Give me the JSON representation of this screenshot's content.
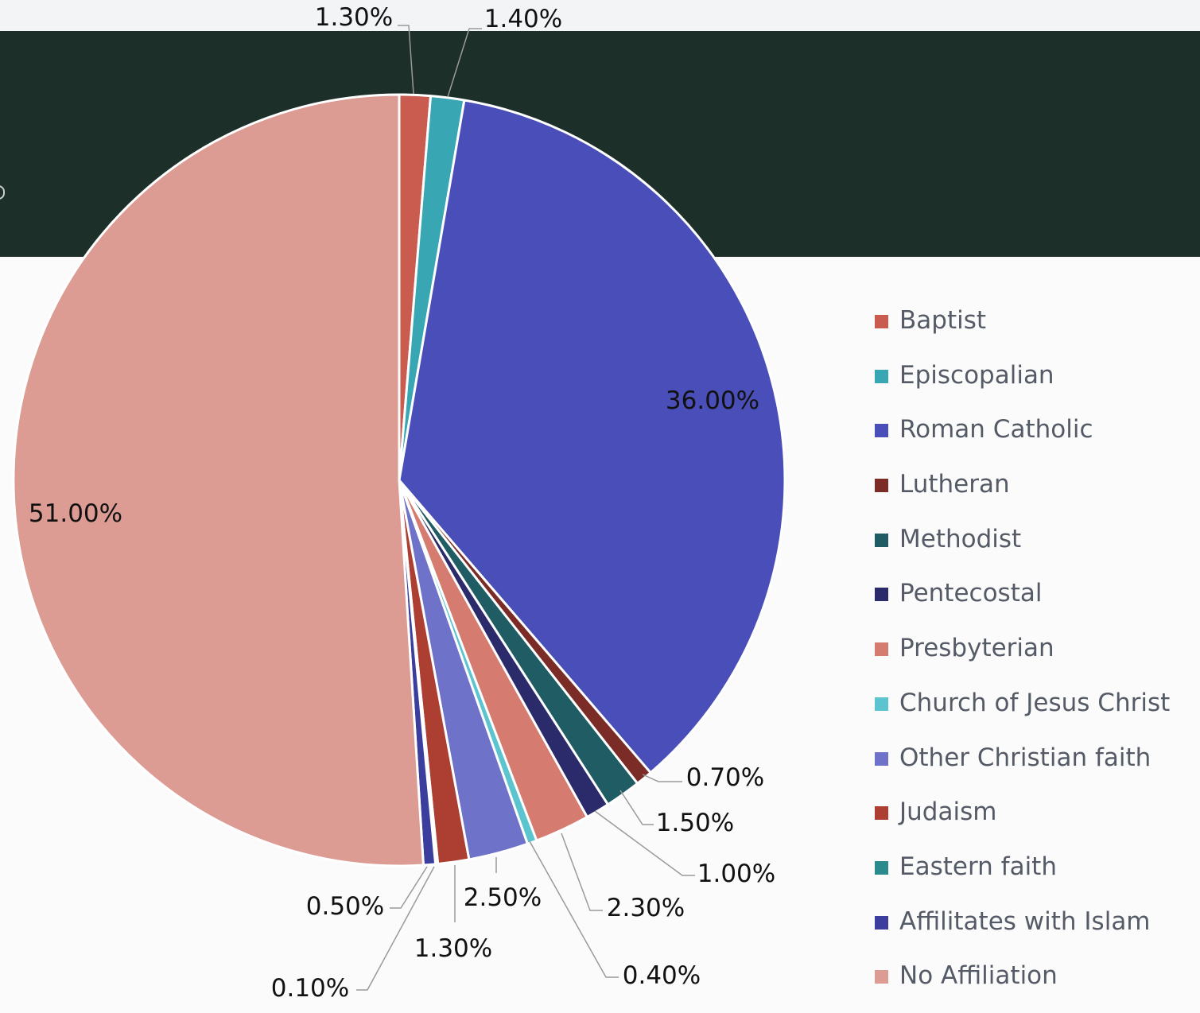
{
  "chart_data": {
    "type": "pie",
    "title": "",
    "legend_position": "right",
    "slices": [
      {
        "label": "Baptist",
        "value": 1.3,
        "value_label": "1.30%",
        "color": "#c95c4e"
      },
      {
        "label": "Episcopalian",
        "value": 1.4,
        "value_label": "1.40%",
        "color": "#38a6b3"
      },
      {
        "label": "Roman Catholic",
        "value": 36.0,
        "value_label": "36.00%",
        "color": "#4a4eb8"
      },
      {
        "label": "Lutheran",
        "value": 0.7,
        "value_label": "0.70%",
        "color": "#7b2c26"
      },
      {
        "label": "Methodist",
        "value": 1.5,
        "value_label": "1.50%",
        "color": "#1f5c63"
      },
      {
        "label": "Pentecostal",
        "value": 1.0,
        "value_label": "1.00%",
        "color": "#2b2a6b"
      },
      {
        "label": "Presbyterian",
        "value": 2.3,
        "value_label": "2.30%",
        "color": "#d57b70"
      },
      {
        "label": "Church of Jesus Christ",
        "value": 0.4,
        "value_label": "0.40%",
        "color": "#5cc4cf"
      },
      {
        "label": "Other Christian faith",
        "value": 2.5,
        "value_label": "2.50%",
        "color": "#6e72c8"
      },
      {
        "label": "Judaism",
        "value": 1.3,
        "value_label": "1.30%",
        "color": "#ad3e32"
      },
      {
        "label": "Eastern faith",
        "value": 0.1,
        "value_label": "0.10%",
        "color": "#2b8a8c"
      },
      {
        "label": "Affilitates with Islam",
        "value": 0.5,
        "value_label": "0.50%",
        "color": "#3b3e9c"
      },
      {
        "label": "No Affiliation",
        "value": 51.0,
        "value_label": "51.00%",
        "color": "#dc9b93"
      }
    ]
  }
}
